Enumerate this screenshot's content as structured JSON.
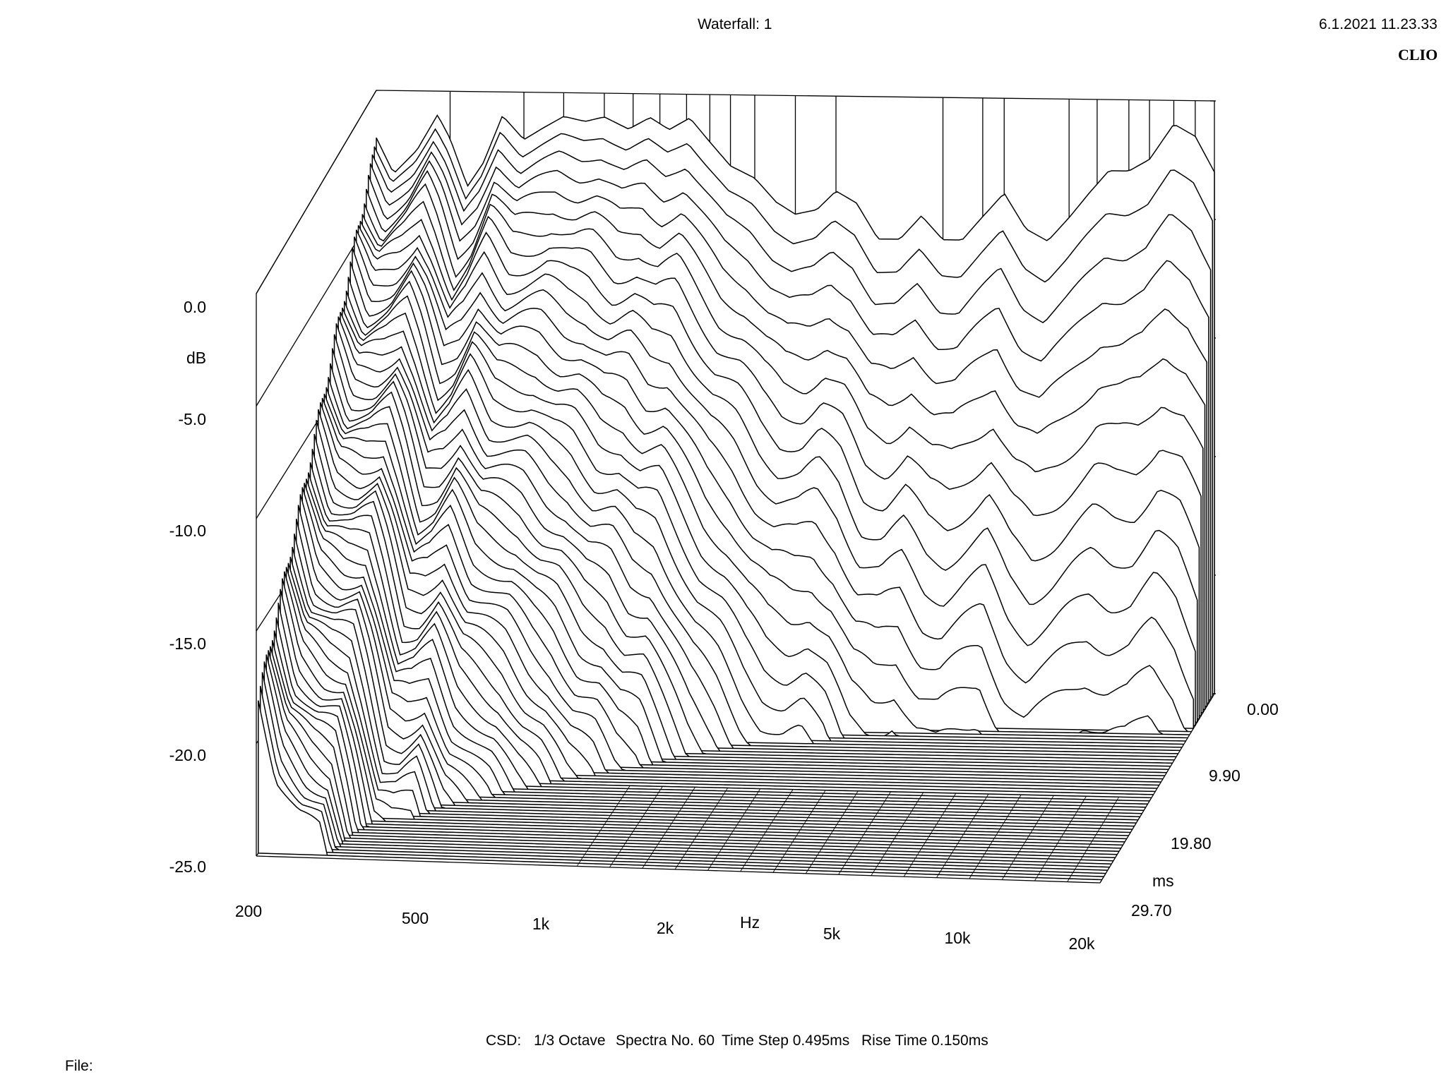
{
  "header": {
    "title": "Waterfall: 1",
    "datetime": "6.1.2021 11.23.33",
    "brand": "CLIO"
  },
  "footer": {
    "csd": "CSD:",
    "octave": "1/3 Octave",
    "spectra": "Spectra No. 60",
    "time_step": "Time Step 0.495ms",
    "rise_time": "Rise Time 0.150ms",
    "file_label": "File:"
  },
  "chart_data": {
    "type": "waterfall",
    "title": "Waterfall: 1",
    "ylabel": "dB",
    "xlabel": "Hz",
    "zlabel": "ms",
    "x_scale": "log",
    "xlim": [
      200,
      20000
    ],
    "ylim": [
      -25,
      0
    ],
    "zlim": [
      0,
      29.7
    ],
    "y_ticks": [
      "0.0",
      "-5.0",
      "-10.0",
      "-15.0",
      "-20.0",
      "-25.0"
    ],
    "x_ticks": [
      "200",
      "500",
      "1k",
      "2k",
      "5k",
      "10k",
      "20k"
    ],
    "x_tick_values": [
      200,
      500,
      1000,
      2000,
      5000,
      10000,
      20000
    ],
    "z_ticks": [
      "0.00",
      "9.90",
      "19.80",
      "29.70"
    ],
    "z_tick_values": [
      0,
      9.9,
      19.8,
      29.7
    ],
    "spectra_count": 60,
    "time_step_ms": 0.495,
    "first_spectrum": {
      "x": [
        200,
        220,
        250,
        280,
        300,
        330,
        360,
        400,
        450,
        500,
        560,
        630,
        700,
        800,
        900,
        1000,
        1120,
        1250,
        1400,
        1600,
        1800,
        2000,
        2250,
        2500,
        2800,
        3150,
        3550,
        4000,
        4500,
        5000,
        5600,
        6300,
        7100,
        8000,
        9000,
        10000,
        11200,
        12500,
        14000,
        16000,
        18000,
        20000
      ],
      "y": [
        -2.0,
        -3.5,
        -2.5,
        -1.0,
        -2.0,
        -4.0,
        -3.0,
        -1.0,
        -2.0,
        -1.5,
        -1.0,
        -1.2,
        -1.0,
        -1.5,
        -1.0,
        -1.5,
        -1.0,
        -2.0,
        -3.0,
        -3.5,
        -4.5,
        -5.0,
        -4.8,
        -4.0,
        -4.5,
        -6.0,
        -6.0,
        -5.0,
        -6.0,
        -6.0,
        -5.0,
        -4.0,
        -5.5,
        -6.0,
        -5.0,
        -4.0,
        -3.0,
        -3.0,
        -2.5,
        -1.0,
        -1.5,
        -3.0
      ]
    }
  }
}
